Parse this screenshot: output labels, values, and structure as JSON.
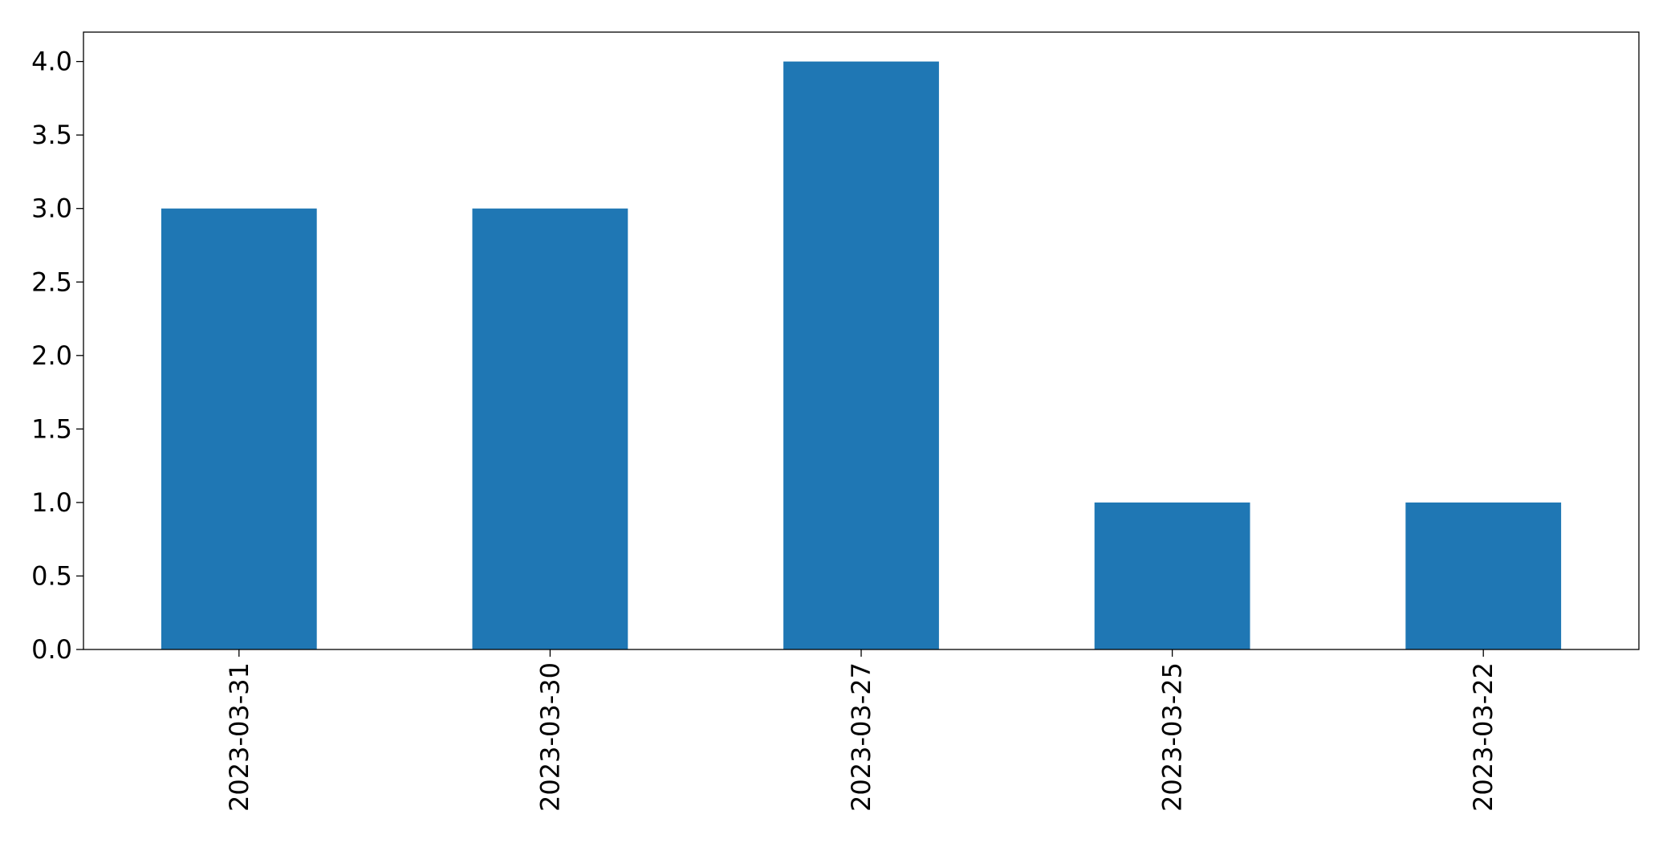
{
  "chart_data": {
    "type": "bar",
    "categories": [
      "2023-03-31",
      "2023-03-30",
      "2023-03-27",
      "2023-03-25",
      "2023-03-22"
    ],
    "values": [
      3,
      3,
      4,
      1,
      1
    ],
    "color": "#1f77b4",
    "ylim": [
      0,
      4.2
    ],
    "yticks": [
      {
        "value": 0,
        "label": "0.0"
      },
      0.5,
      {
        "value": 1,
        "label": "1.0"
      },
      1.5,
      {
        "value": 2,
        "label": "2.0"
      },
      2.5,
      {
        "value": 3,
        "label": "3.0"
      },
      3.5,
      {
        "value": 4,
        "label": "4.0"
      }
    ],
    "grid": false
  }
}
